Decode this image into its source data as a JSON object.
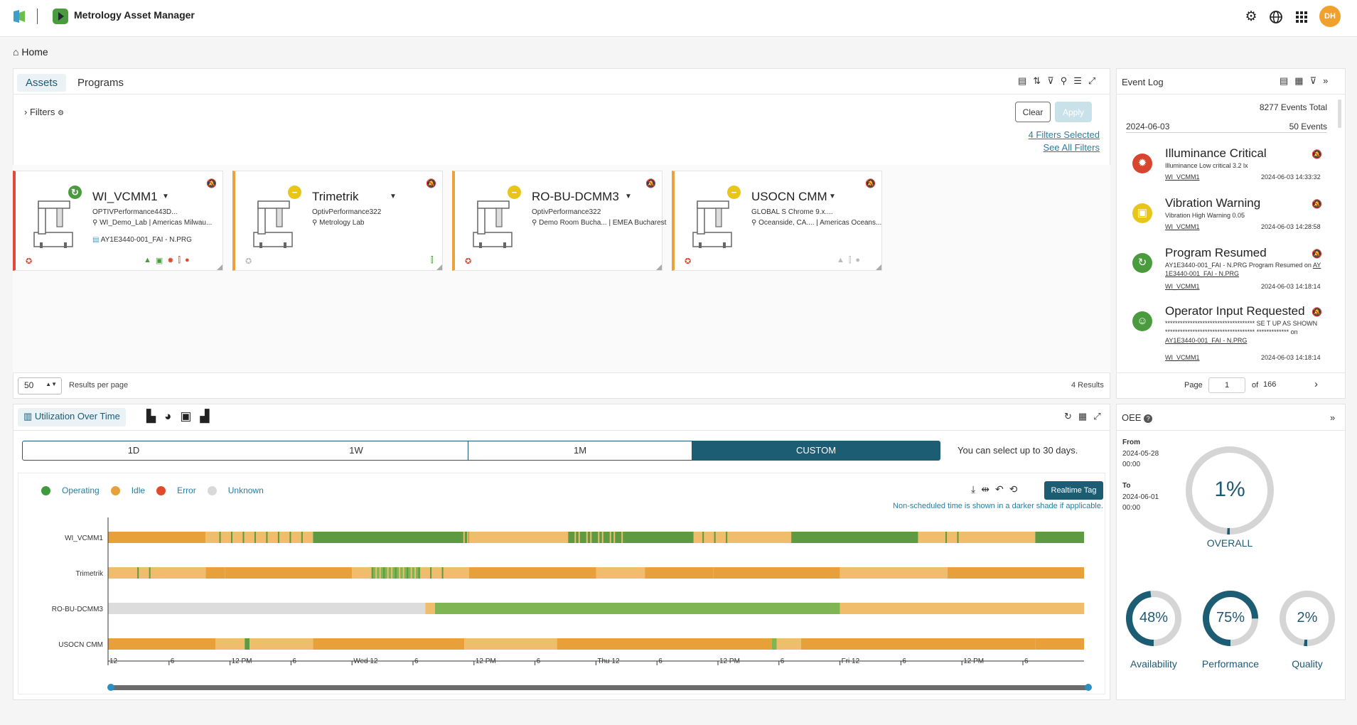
{
  "app": {
    "title": "Metrology Asset Manager",
    "user_initials": "DH"
  },
  "breadcrumb": {
    "home": "Home"
  },
  "assets_panel": {
    "tabs": [
      "Assets",
      "Programs"
    ],
    "filters_label": "Filters",
    "clear_label": "Clear",
    "apply_label": "Apply",
    "filters_selected": "4 Filters Selected",
    "see_all_filters": "See All Filters",
    "per_page_value": "50",
    "per_page_label": "Results per page",
    "results_count": "4 Results"
  },
  "cards": [
    {
      "name": "WI_VCMM1",
      "model": "OPTIVPerformance443D...",
      "location": "WI_Demo_Lab | Americas Milwau...",
      "program": "AY1E3440-001_FAI - N.PRG",
      "status": "running",
      "border": "#e04a3a"
    },
    {
      "name": "Trimetrik",
      "model": "OptivPerformance322",
      "location": "Metrology Lab",
      "program": "",
      "status": "idle",
      "border": "#eba23a"
    },
    {
      "name": "RO-BU-DCMM3",
      "model": "OptivPerformance322",
      "location": "Demo Room Bucha... | EMEA Bucharest",
      "program": "",
      "status": "idle",
      "border": "#eba23a"
    },
    {
      "name": "USOCN CMM",
      "model": "GLOBAL S Chrome 9.x....",
      "location": "Oceanside, CA.... | Americas Oceans...",
      "program": "",
      "status": "idle",
      "border": "#eba23a"
    }
  ],
  "event_log": {
    "title": "Event Log",
    "total": "8277 Events Total",
    "date": "2024-06-03",
    "day_count": "50 Events",
    "events": [
      {
        "title": "Illuminance Critical",
        "desc": "Illuminance Low critical 3.2 lx",
        "asset": "WI_VCMM1",
        "time": "2024-06-03 14:33:32",
        "icon": "sun-icon",
        "color": "#d9442f"
      },
      {
        "title": "Vibration Warning",
        "desc": "Vibration High Warning 0.05",
        "asset": "WI_VCMM1",
        "time": "2024-06-03 14:28:58",
        "icon": "vibration-icon",
        "color": "#e8c619"
      },
      {
        "title": "Program Resumed",
        "desc": "AY1E3440-001_FAI - N.PRG Program Resumed on",
        "desc_link": "AY 1E3440-001_FAI - N.PRG",
        "asset": "WI_VCMM1",
        "time": "2024-06-03 14:18:14",
        "icon": "resume-icon",
        "color": "#4a9b3e"
      },
      {
        "title": "Operator Input Requested",
        "desc": "************************************ SE T UP AS SHOWN ************************************ ************* on",
        "desc_link": "AY1E3440-001_FAI - N.PRG",
        "asset": "WI_VCMM1",
        "time": "2024-06-03 14:18:14",
        "icon": "operator-icon",
        "color": "#4a9b3e"
      }
    ],
    "page_label": "Page",
    "page_value": "1",
    "of_label": "of",
    "total_pages": "166"
  },
  "utilization": {
    "title": "Utilization Over Time",
    "ranges": [
      "1D",
      "1W",
      "1M",
      "CUSTOM"
    ],
    "active_range": "CUSTOM",
    "range_note": "You can select up to 30 days.",
    "realtime_label": "Realtime Tag",
    "shade_note": "Non-scheduled time is shown in a darker shade if applicable.",
    "legend": [
      {
        "label": "Operating",
        "color": "#3f9a3c"
      },
      {
        "label": "Idle",
        "color": "#e8a13a"
      },
      {
        "label": "Error",
        "color": "#e04a2a"
      },
      {
        "label": "Unknown",
        "color": "#d9d9d9"
      }
    ],
    "rows": [
      "WI_VCMM1",
      "Trimetrik",
      "RO-BU-DCMM3",
      "USOCN CMM"
    ],
    "ticks": [
      "12",
      "6",
      "12 PM",
      "6",
      "Wed 12",
      "6",
      "12 PM",
      "6",
      "Thu 12",
      "6",
      "12 PM",
      "6",
      "Fri 12",
      "6",
      "12 PM",
      "6"
    ]
  },
  "oee": {
    "title": "OEE",
    "from_label": "From",
    "from_value": "2024-05-28 00:00",
    "to_label": "To",
    "to_value": "2024-06-01 00:00",
    "overall": {
      "value": "1%",
      "label": "OVERALL",
      "fraction": 0.01
    },
    "availability": {
      "value": "48%",
      "label": "Availability",
      "fraction": 0.48
    },
    "performance": {
      "value": "75%",
      "label": "Performance",
      "fraction": 0.75
    },
    "quality": {
      "value": "2%",
      "label": "Quality",
      "fraction": 0.02
    }
  }
}
